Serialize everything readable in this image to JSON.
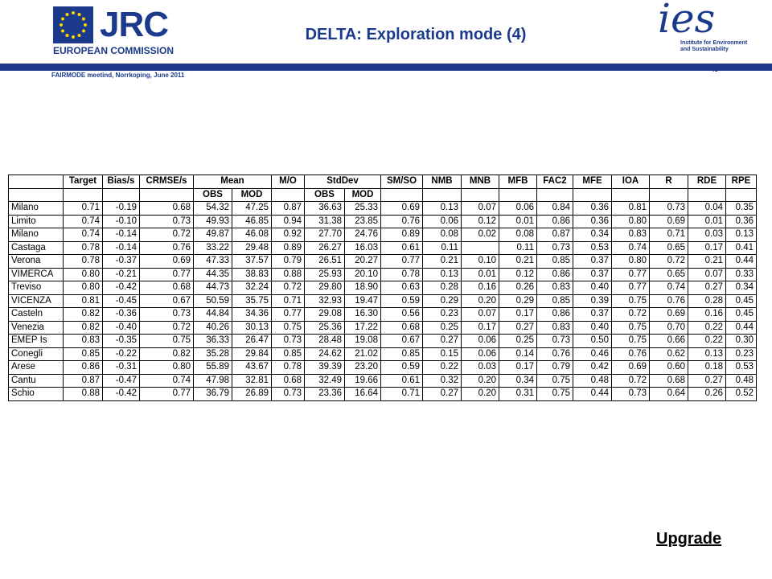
{
  "header": {
    "logo_left": {
      "name": "JRC",
      "subtitle": "EUROPEAN COMMISSION"
    },
    "title": "DELTA: Exploration mode (4)",
    "logo_right": {
      "name": "ies",
      "subtitle": "Institute for Environment and Sustainability"
    },
    "footer_text": "FAIRMODE meetind, Norrkoping, June 2011",
    "page_number": "43"
  },
  "table": {
    "columns": [
      {
        "label": "Target"
      },
      {
        "label": "Bias/s"
      },
      {
        "label": "CRMSE/s"
      },
      {
        "label": "Mean",
        "sub": [
          "OBS",
          "MOD"
        ]
      },
      {
        "label": "M/O"
      },
      {
        "label": "StdDev",
        "sub": [
          "OBS",
          "MOD"
        ]
      },
      {
        "label": "SM/SO"
      },
      {
        "label": "NMB"
      },
      {
        "label": "MNB"
      },
      {
        "label": "MFB"
      },
      {
        "label": "FAC2"
      },
      {
        "label": "MFE"
      },
      {
        "label": "IOA"
      },
      {
        "label": "R"
      },
      {
        "label": "RDE"
      },
      {
        "label": "RPE"
      }
    ],
    "rows": [
      [
        "Milano",
        "0.71",
        "-0.19",
        "0.68",
        "54.32",
        "47.25",
        "0.87",
        "36.63",
        "25.33",
        "0.69",
        "0.13",
        "0.07",
        "0.06",
        "0.84",
        "0.36",
        "0.81",
        "0.73",
        "0.04",
        "0.35"
      ],
      [
        "Limito",
        "0.74",
        "-0.10",
        "0.73",
        "49.93",
        "46.85",
        "0.94",
        "31.38",
        "23.85",
        "0.76",
        "0.06",
        "0.12",
        "0.01",
        "0.86",
        "0.36",
        "0.80",
        "0.69",
        "0.01",
        "0.36"
      ],
      [
        "Milano",
        "0.74",
        "-0.14",
        "0.72",
        "49.87",
        "46.08",
        "0.92",
        "27.70",
        "24.76",
        "0.89",
        "0.08",
        "0.02",
        "0.08",
        "0.87",
        "0.34",
        "0.83",
        "0.71",
        "0.03",
        "0.13"
      ],
      [
        "Castaga",
        "0.78",
        "-0.14",
        "0.76",
        "33.22",
        "29.48",
        "0.89",
        "26.27",
        "16.03",
        "0.61",
        "0.11",
        null,
        "0.11",
        "0.73",
        "0.53",
        "0.74",
        "0.65",
        "0.17",
        "0.41"
      ],
      [
        "Verona",
        "0.78",
        "-0.37",
        "0.69",
        "47.33",
        "37.57",
        "0.79",
        "26.51",
        "20.27",
        "0.77",
        "0.21",
        "0.10",
        "0.21",
        "0.85",
        "0.37",
        "0.80",
        "0.72",
        "0.21",
        "0.44"
      ],
      [
        "VIMERCA",
        "0.80",
        "-0.21",
        "0.77",
        "44.35",
        "38.83",
        "0.88",
        "25.93",
        "20.10",
        "0.78",
        "0.13",
        "0.01",
        "0.12",
        "0.86",
        "0.37",
        "0.77",
        "0.65",
        "0.07",
        "0.33"
      ],
      [
        "Treviso",
        "0.80",
        "-0.42",
        "0.68",
        "44.73",
        "32.24",
        "0.72",
        "29.80",
        "18.90",
        "0.63",
        "0.28",
        "0.16",
        "0.26",
        "0.83",
        "0.40",
        "0.77",
        "0.74",
        "0.27",
        "0.34"
      ],
      [
        "VICENZA",
        "0.81",
        "-0.45",
        "0.67",
        "50.59",
        "35.75",
        "0.71",
        "32.93",
        "19.47",
        "0.59",
        "0.29",
        "0.20",
        "0.29",
        "0.85",
        "0.39",
        "0.75",
        "0.76",
        "0.28",
        "0.45"
      ],
      [
        "Casteln",
        "0.82",
        "-0.36",
        "0.73",
        "44.84",
        "34.36",
        "0.77",
        "29.08",
        "16.30",
        "0.56",
        "0.23",
        "0.07",
        "0.17",
        "0.86",
        "0.37",
        "0.72",
        "0.69",
        "0.16",
        "0.45"
      ],
      [
        "Venezia",
        "0.82",
        "-0.40",
        "0.72",
        "40.26",
        "30.13",
        "0.75",
        "25.36",
        "17.22",
        "0.68",
        "0.25",
        "0.17",
        "0.27",
        "0.83",
        "0.40",
        "0.75",
        "0.70",
        "0.22",
        "0.44"
      ],
      [
        "EMEP Is",
        "0.83",
        "-0.35",
        "0.75",
        "36.33",
        "26.47",
        "0.73",
        "28.48",
        "19.08",
        "0.67",
        "0.27",
        "0.06",
        "0.25",
        "0.73",
        "0.50",
        "0.75",
        "0.66",
        "0.22",
        "0.30"
      ],
      [
        "Conegli",
        "0.85",
        "-0.22",
        "0.82",
        "35.28",
        "29.84",
        "0.85",
        "24.62",
        "21.02",
        "0.85",
        "0.15",
        "0.06",
        "0.14",
        "0.76",
        "0.46",
        "0.76",
        "0.62",
        "0.13",
        "0.23"
      ],
      [
        "Arese",
        "0.86",
        "-0.31",
        "0.80",
        "55.89",
        "43.67",
        "0.78",
        "39.39",
        "23.20",
        "0.59",
        "0.22",
        "0.03",
        "0.17",
        "0.79",
        "0.42",
        "0.69",
        "0.60",
        "0.18",
        "0.53"
      ],
      [
        "Cantu",
        "0.87",
        "-0.47",
        "0.74",
        "47.98",
        "32.81",
        "0.68",
        "32.49",
        "19.66",
        "0.61",
        "0.32",
        "0.20",
        "0.34",
        "0.75",
        "0.48",
        "0.72",
        "0.68",
        "0.27",
        "0.48"
      ],
      [
        "Schio",
        "0.88",
        "-0.42",
        "0.77",
        "36.79",
        "26.89",
        "0.73",
        "23.36",
        "16.64",
        "0.71",
        "0.27",
        "0.20",
        "0.31",
        "0.75",
        "0.44",
        "0.73",
        "0.64",
        "0.26",
        "0.52"
      ]
    ]
  },
  "link": "Upgrade"
}
